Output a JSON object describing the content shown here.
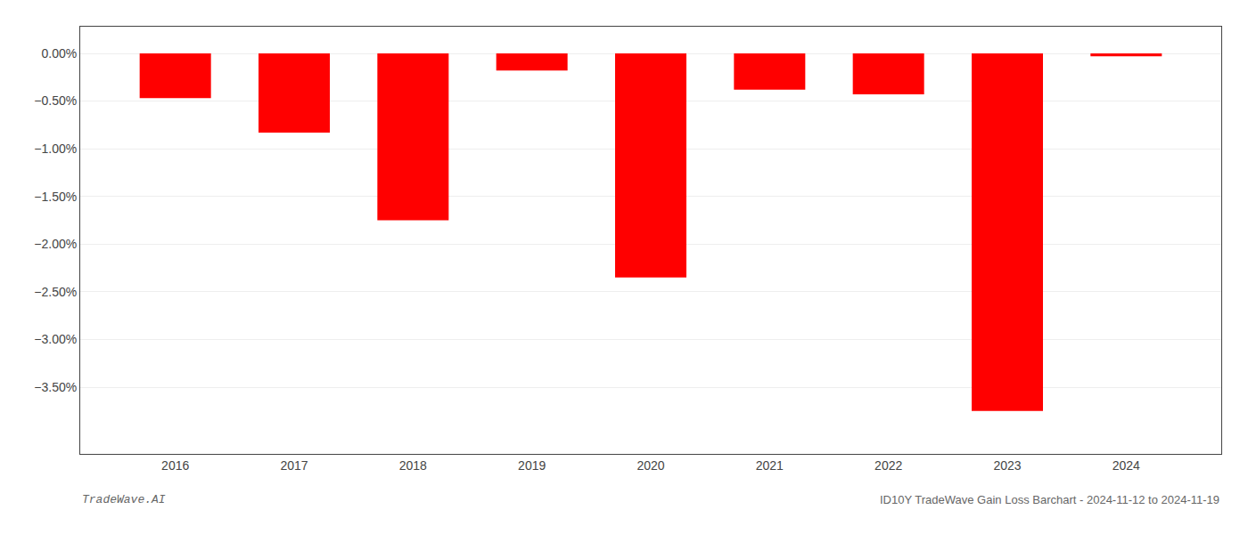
{
  "chart_data": {
    "type": "bar",
    "x": [
      2016,
      2017,
      2018,
      2019,
      2020,
      2021,
      2022,
      2023,
      2024
    ],
    "values": [
      -0.0047,
      -0.0083,
      -0.0175,
      -0.0018,
      -0.0235,
      -0.0038,
      -0.0043,
      -0.0375,
      -0.0003
    ],
    "color": "#ff0000",
    "xlim": [
      2015.2,
      2024.8
    ],
    "xticks": [
      2016,
      2017,
      2018,
      2019,
      2020,
      2021,
      2022,
      2023,
      2024
    ],
    "ylim": [
      -0.042,
      0.0028
    ],
    "yticks": [
      {
        "value": 0.0,
        "label": "0.00%"
      },
      {
        "value": -0.005,
        "label": "−0.50%"
      },
      {
        "value": -0.01,
        "label": "−1.00%"
      },
      {
        "value": -0.015,
        "label": "−1.50%"
      },
      {
        "value": -0.02,
        "label": "−2.00%"
      },
      {
        "value": -0.025,
        "label": "−2.50%"
      },
      {
        "value": -0.03,
        "label": "−3.00%"
      },
      {
        "value": -0.035,
        "label": "−3.50%"
      }
    ],
    "grid": true,
    "annotations": [
      "TradeWave.AI",
      "ID10Y TradeWave Gain Loss Barchart - 2024-11-12 to 2024-11-19"
    ]
  }
}
